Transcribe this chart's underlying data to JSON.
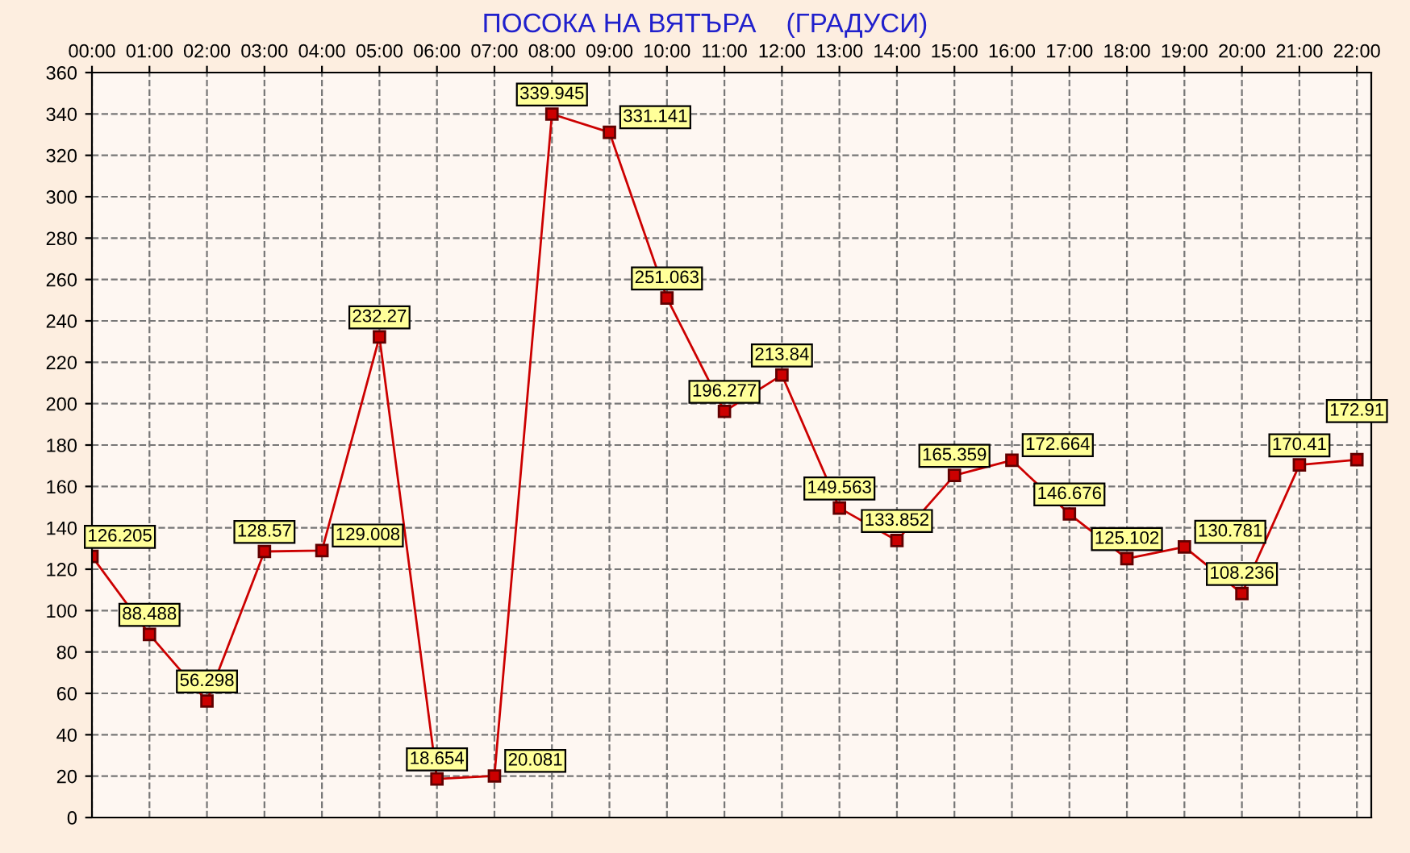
{
  "chart_data": {
    "type": "line",
    "title": "ПОСОКА НА ВЯТЪРА    (ГРАДУСИ)",
    "categories": [
      "00:00",
      "01:00",
      "02:00",
      "03:00",
      "04:00",
      "05:00",
      "06:00",
      "07:00",
      "08:00",
      "09:00",
      "10:00",
      "11:00",
      "12:00",
      "13:00",
      "14:00",
      "15:00",
      "16:00",
      "17:00",
      "18:00",
      "19:00",
      "20:00",
      "21:00",
      "22:00"
    ],
    "series": [
      {
        "color": "#cc0000",
        "values": [
          126.205,
          88.488,
          56.298,
          128.57,
          129.008,
          232.27,
          18.654,
          20.081,
          339.945,
          331.141,
          251.063,
          196.277,
          213.84,
          149.563,
          133.852,
          165.359,
          172.664,
          146.676,
          125.102,
          130.781,
          108.236,
          170.41,
          172.91
        ]
      }
    ],
    "ylim": [
      0,
      360
    ],
    "yticks": [
      0,
      20,
      40,
      60,
      80,
      100,
      120,
      140,
      160,
      180,
      200,
      220,
      240,
      260,
      280,
      300,
      320,
      340,
      360
    ],
    "grid": true,
    "marker": "square",
    "line_style": "solid",
    "data_labels": true,
    "legend": false
  }
}
